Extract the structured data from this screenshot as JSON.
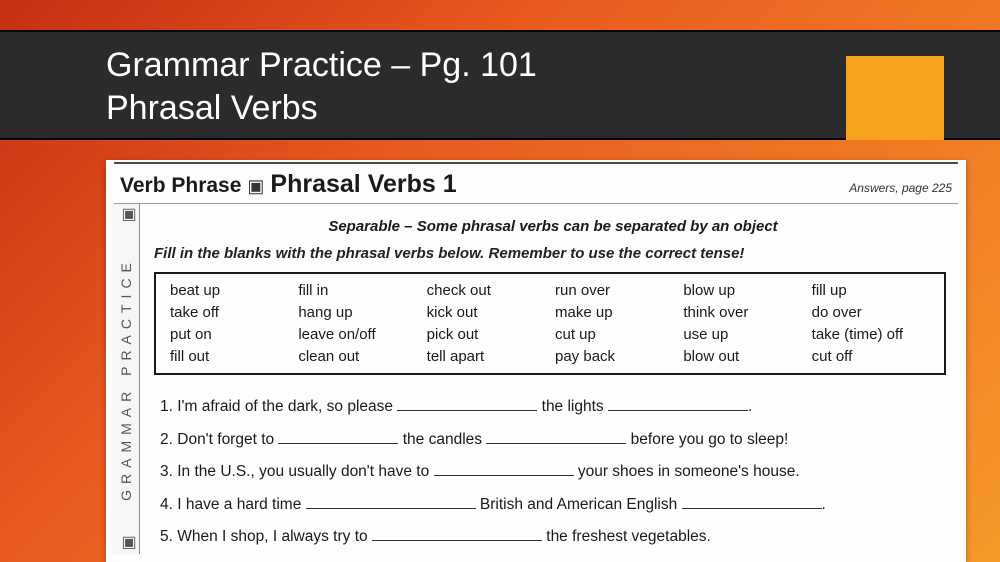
{
  "slide": {
    "title_line1": "Grammar Practice – Pg. 101",
    "title_line2": "Phrasal Verbs",
    "colors": {
      "bg_grad_start": "#c52f12",
      "bg_grad_mid": "#e85a1f",
      "bg_grad_end": "#f6992a",
      "band": "#2b2b2b",
      "accent": "#f6a21f",
      "title_text": "#ffffff"
    }
  },
  "worksheet": {
    "header_small": "Verb Phrase",
    "header_ornament": "▣",
    "header_large": "Phrasal Verbs 1",
    "answers_ref": "Answers, page 225",
    "sidebar_label": "GRAMMAR PRACTICE",
    "separable_note": "Separable – Some phrasal verbs can be separated by an object",
    "instructions_a": "Fill in the blanks with the phrasal verbs below.  ",
    "instructions_b": "Remember to use the correct tense!",
    "word_bank": {
      "columns": 6,
      "rows": [
        [
          "beat up",
          "fill in",
          "check out",
          "run over",
          "blow up",
          "fill up"
        ],
        [
          "take off",
          "hang up",
          "kick out",
          "make up",
          "think over",
          "do over"
        ],
        [
          "put on",
          "leave on/off",
          "pick out",
          "cut up",
          "use up",
          "take (time) off"
        ],
        [
          "fill out",
          "clean out",
          "tell apart",
          "pay back",
          "blow out",
          "cut off"
        ]
      ]
    },
    "questions": [
      {
        "n": "1.",
        "a": "I'm afraid of the dark, so please ",
        "b": " the lights ",
        "c": "."
      },
      {
        "n": "2.",
        "a": "Don't forget to ",
        "b": " the candles ",
        "c": " before you go to sleep!"
      },
      {
        "n": "3.",
        "a": "In the U.S., you usually don't have to ",
        "b": " your shoes in someone's house."
      },
      {
        "n": "4.",
        "a": "I have a hard time ",
        "b": " British and American English ",
        "c": "."
      },
      {
        "n": "5.",
        "a": "When I shop, I always try to ",
        "b": " the freshest vegetables."
      }
    ]
  }
}
